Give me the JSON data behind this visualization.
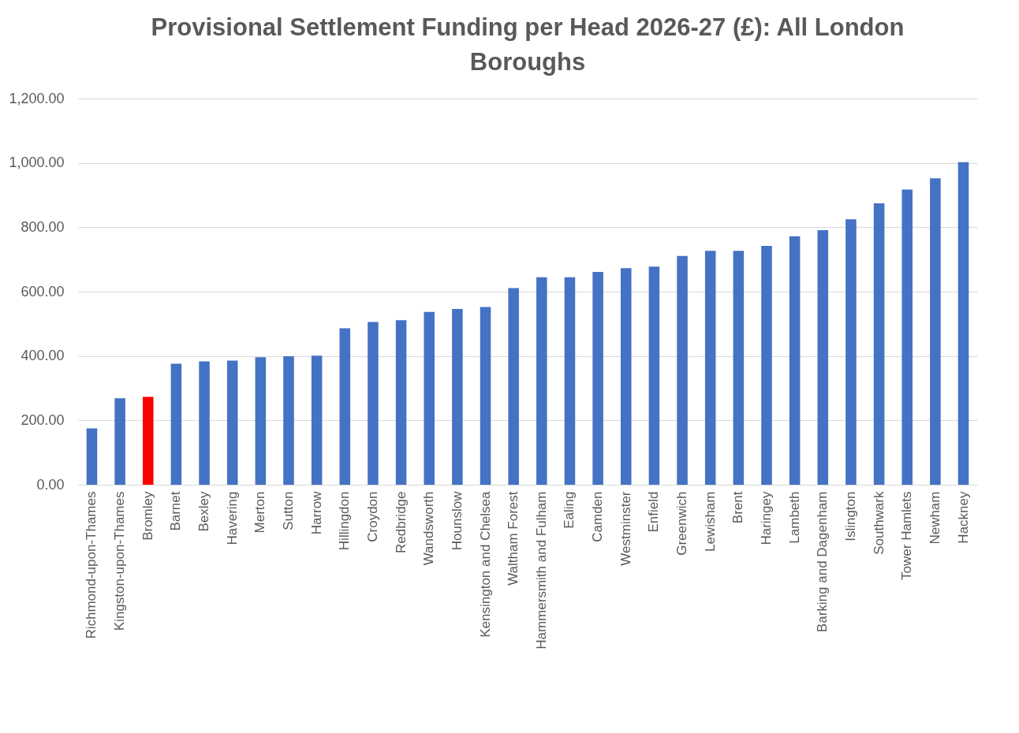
{
  "chart_data": {
    "type": "bar",
    "title": "Provisional Settlement Funding per Head 2026-27 (£): All London Boroughs",
    "categories": [
      "Richmond-upon-Thames",
      "Kingston-upon-Thames",
      "Bromley",
      "Barnet",
      "Bexley",
      "Havering",
      "Merton",
      "Sutton",
      "Harrow",
      "Hillingdon",
      "Croydon",
      "Redbridge",
      "Wandsworth",
      "Hounslow",
      "Kensington and Chelsea",
      "Waltham Forest",
      "Hammersmith and Fulham",
      "Ealing",
      "Camden",
      "Westminster",
      "Enfield",
      "Greenwich",
      "Lewisham",
      "Brent",
      "Haringey",
      "Lambeth",
      "Barking and Dagenham",
      "Islington",
      "Southwark",
      "Tower Hamlets",
      "Newham",
      "Hackney"
    ],
    "values": [
      175,
      269,
      273,
      376,
      383,
      386,
      396,
      399,
      401,
      486,
      506,
      511,
      537,
      546,
      552,
      611,
      645,
      645,
      661,
      673,
      678,
      711,
      727,
      727,
      742,
      772,
      791,
      825,
      874,
      917,
      952,
      1002
    ],
    "colors": [
      "#4472c4",
      "#4472c4",
      "#ff0000",
      "#4472c4",
      "#4472c4",
      "#4472c4",
      "#4472c4",
      "#4472c4",
      "#4472c4",
      "#4472c4",
      "#4472c4",
      "#4472c4",
      "#4472c4",
      "#4472c4",
      "#4472c4",
      "#4472c4",
      "#4472c4",
      "#4472c4",
      "#4472c4",
      "#4472c4",
      "#4472c4",
      "#4472c4",
      "#4472c4",
      "#4472c4",
      "#4472c4",
      "#4472c4",
      "#4472c4",
      "#4472c4",
      "#4472c4",
      "#4472c4",
      "#4472c4",
      "#4472c4"
    ],
    "ylim": [
      0,
      1200
    ],
    "yticks": [
      {
        "value": 0,
        "label": "0.00"
      },
      {
        "value": 200,
        "label": "200.00"
      },
      {
        "value": 400,
        "label": "400.00"
      },
      {
        "value": 600,
        "label": "600.00"
      },
      {
        "value": 800,
        "label": "800.00"
      },
      {
        "value": 1000,
        "label": "1,000.00"
      },
      {
        "value": 1200,
        "label": "1,200.00"
      }
    ],
    "grid": "y"
  }
}
